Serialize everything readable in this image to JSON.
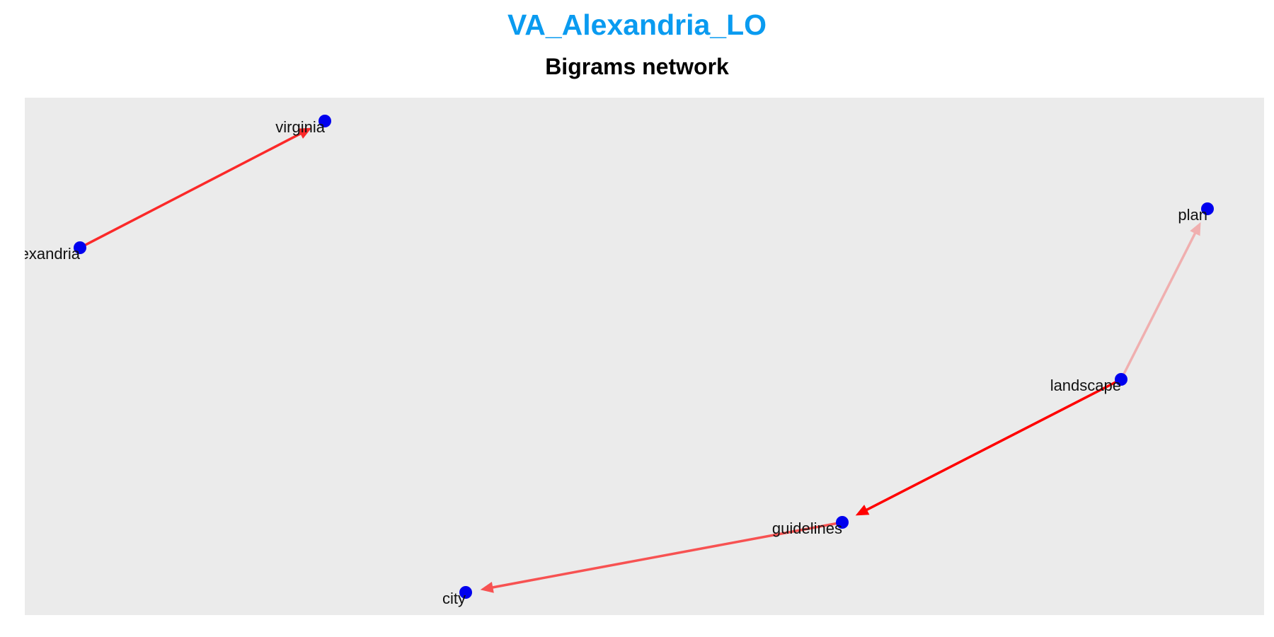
{
  "title": "VA_Alexandria_LO",
  "subtitle": "Bigrams network",
  "colors": {
    "title": "#0A9BF0",
    "panel_background": "#EBEBEB",
    "node": "#0000EE",
    "edge": "#FF0000"
  },
  "nodes": [
    {
      "id": "alexandria",
      "label": "alexandria"
    },
    {
      "id": "virginia",
      "label": "virginia"
    },
    {
      "id": "plan",
      "label": "plan"
    },
    {
      "id": "landscape",
      "label": "landscape"
    },
    {
      "id": "guidelines",
      "label": "guidelines"
    },
    {
      "id": "city",
      "label": "city"
    }
  ],
  "edges": [
    {
      "from": "alexandria",
      "to": "virginia",
      "weight": 0.8
    },
    {
      "from": "landscape",
      "to": "plan",
      "weight": 0.15
    },
    {
      "from": "landscape",
      "to": "guidelines",
      "weight": 1.0
    },
    {
      "from": "guidelines",
      "to": "city",
      "weight": 0.6
    }
  ]
}
